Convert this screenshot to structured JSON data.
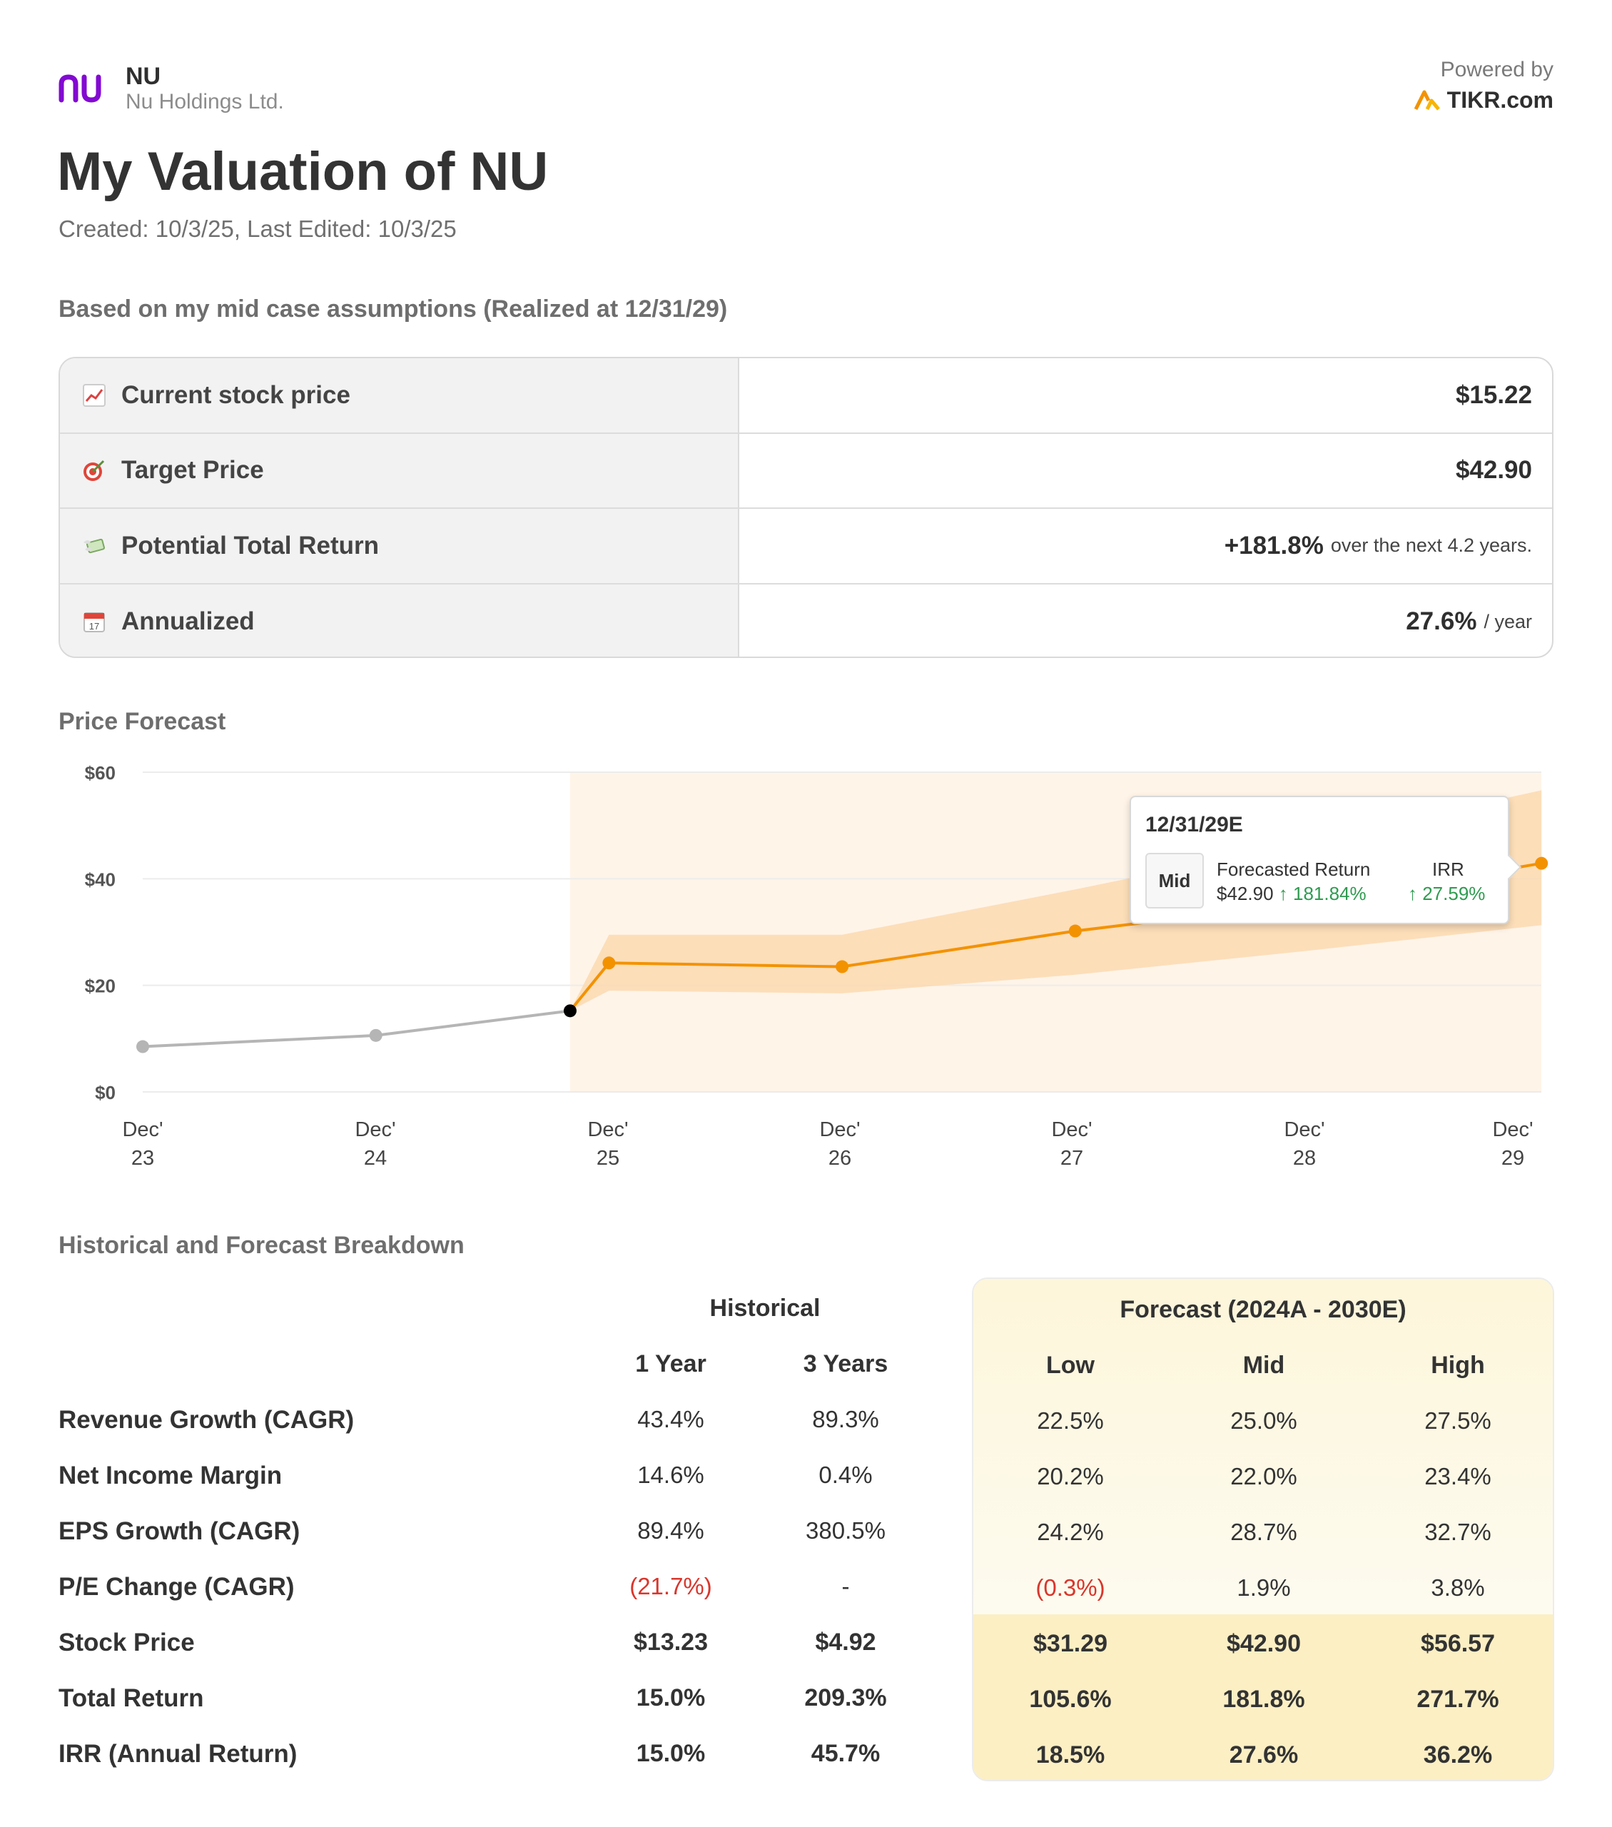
{
  "header": {
    "ticker": "NU",
    "company": "Nu Holdings Ltd.",
    "powered_by": "Powered by",
    "brand": "TIKR.com"
  },
  "title": "My Valuation of NU",
  "dates": "Created: 10/3/25, Last Edited: 10/3/25",
  "assumptions_heading": "Based on my mid case assumptions (Realized at 12/31/29)",
  "summary": [
    {
      "icon": "chart-up-icon",
      "label": "Current stock price",
      "value": "$15.22",
      "suffix": ""
    },
    {
      "icon": "target-icon",
      "label": "Target Price",
      "value": "$42.90",
      "suffix": ""
    },
    {
      "icon": "money-wings-icon",
      "label": "Potential Total Return",
      "value": "+181.8%",
      "suffix": "over the next 4.2 years."
    },
    {
      "icon": "calendar-icon",
      "label": "Annualized",
      "value": "27.6%",
      "suffix": "/ year"
    }
  ],
  "price_forecast_heading": "Price Forecast",
  "chart_data": {
    "type": "line",
    "y_ticks": [
      "$60",
      "$40",
      "$20",
      "$0"
    ],
    "ylim": [
      0,
      60
    ],
    "x_ticks": [
      [
        "Dec'",
        "23"
      ],
      [
        "Dec'",
        "24"
      ],
      [
        "Dec'",
        "25"
      ],
      [
        "Dec'",
        "26"
      ],
      [
        "Dec'",
        "27"
      ],
      [
        "Dec'",
        "28"
      ],
      [
        "Dec'",
        "29"
      ]
    ],
    "historical": [
      {
        "x": "Dec 23",
        "y": 8.5
      },
      {
        "x": "Dec 24",
        "y": 10.6
      },
      {
        "x": "Oct 25",
        "y": 15.22
      }
    ],
    "forecast_mid": [
      {
        "x": "Oct 25",
        "y": 15.22
      },
      {
        "x": "Dec 25",
        "y": 24.2
      },
      {
        "x": "Dec 26",
        "y": 23.5
      },
      {
        "x": "Dec 27",
        "y": 30.2
      },
      {
        "x": "Dec 28",
        "y": 35.5
      },
      {
        "x": "Dec 29",
        "y": 42.9
      }
    ],
    "forecast_band_high": [
      15.22,
      29.5,
      29.5,
      38,
      47,
      56.6
    ],
    "forecast_band_low": [
      15.22,
      19,
      18.5,
      22,
      26.5,
      31.3
    ],
    "colors": {
      "historical": "#b5b5b5",
      "forecast": "#f39200",
      "band": "#fbd9b0",
      "shade": "#fff4e8",
      "grid": "#ececec"
    }
  },
  "tooltip": {
    "date": "12/31/29E",
    "case": "Mid",
    "h1": "Forecasted Return",
    "h2": "IRR",
    "price": "$42.90",
    "ret": "↑ 181.84%",
    "irr": "↑ 27.59%"
  },
  "breakdown_heading": "Historical and Forecast Breakdown",
  "breakdown": {
    "historical_label": "Historical",
    "forecast_label": "Forecast (2024A - 2030E)",
    "cols": [
      "1 Year",
      "3 Years",
      "Low",
      "Mid",
      "High"
    ],
    "rows": [
      {
        "label": "Revenue Growth (CAGR)",
        "values": [
          "43.4%",
          "89.3%",
          "22.5%",
          "25.0%",
          "27.5%"
        ]
      },
      {
        "label": "Net Income Margin",
        "values": [
          "14.6%",
          "0.4%",
          "20.2%",
          "22.0%",
          "23.4%"
        ]
      },
      {
        "label": "EPS Growth (CAGR)",
        "values": [
          "89.4%",
          "380.5%",
          "24.2%",
          "28.7%",
          "32.7%"
        ]
      },
      {
        "label": "P/E Change (CAGR)",
        "values": [
          "(21.7%)",
          "-",
          "(0.3%)",
          "1.9%",
          "3.8%"
        ]
      },
      {
        "label": "Stock Price",
        "values": [
          "$13.23",
          "$4.92",
          "$31.29",
          "$42.90",
          "$56.57"
        ]
      },
      {
        "label": "Total Return",
        "values": [
          "15.0%",
          "209.3%",
          "105.6%",
          "181.8%",
          "271.7%"
        ]
      },
      {
        "label": "IRR (Annual Return)",
        "values": [
          "15.0%",
          "45.7%",
          "18.5%",
          "27.6%",
          "36.2%"
        ]
      }
    ]
  }
}
